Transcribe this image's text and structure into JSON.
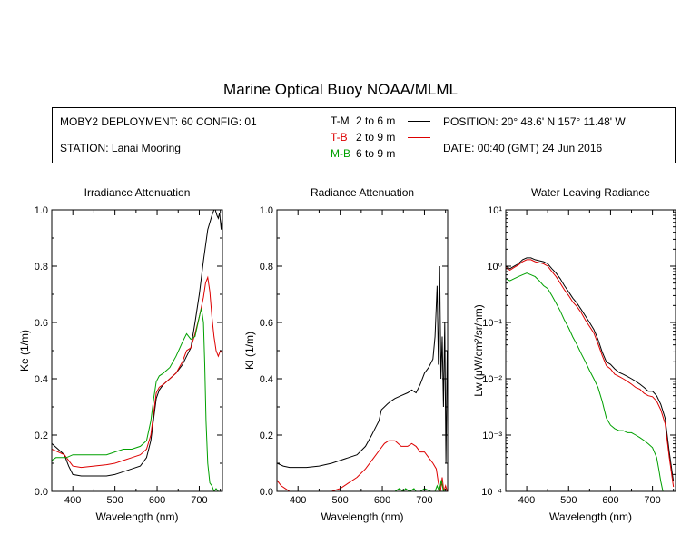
{
  "title": "Marine Optical Buoy NOAA/MLML",
  "info": {
    "deployment": "MOBY2 DEPLOYMENT: 60 CONFIG: 01",
    "station": "STATION: Lanai Mooring",
    "position": "POSITION: 20° 48.6' N  157° 11.48' W",
    "date": "DATE: 00:40 (GMT) 24 Jun 2016",
    "legend": [
      {
        "code": "T-M",
        "range": "2 to 6  m",
        "color": "#000000"
      },
      {
        "code": "T-B",
        "range": "2 to 9  m",
        "color": "#dd0000"
      },
      {
        "code": "M-B",
        "range": "6 to 9  m",
        "color": "#00a000"
      }
    ]
  },
  "chart_data": [
    {
      "type": "line",
      "title": "Irradiance Attenuation",
      "xlabel": "Wavelength (nm)",
      "ylabel": "Ke  (1/m)",
      "xlim": [
        350,
        755
      ],
      "ylim": [
        0,
        1
      ],
      "xticks": [
        400,
        500,
        600,
        700
      ],
      "yticks": [
        0.0,
        0.2,
        0.4,
        0.6,
        0.8,
        1.0
      ],
      "ytick_labels": [
        "0.0",
        "0.2",
        "0.4",
        "0.6",
        "0.8",
        "1.0"
      ],
      "series": [
        {
          "code": "T-M",
          "color": "#000000",
          "x": [
            350,
            365,
            380,
            390,
            400,
            420,
            450,
            480,
            500,
            520,
            540,
            560,
            575,
            585,
            592,
            598,
            605,
            615,
            630,
            645,
            660,
            670,
            680,
            690,
            700,
            710,
            720,
            730,
            735,
            738,
            742,
            745,
            748,
            752,
            755
          ],
          "y": [
            0.17,
            0.15,
            0.13,
            0.09,
            0.06,
            0.055,
            0.055,
            0.055,
            0.06,
            0.07,
            0.08,
            0.09,
            0.12,
            0.18,
            0.26,
            0.33,
            0.36,
            0.38,
            0.4,
            0.42,
            0.45,
            0.48,
            0.51,
            0.6,
            0.7,
            0.82,
            0.93,
            0.98,
            1.0,
            1.0,
            0.98,
            0.97,
            0.99,
            0.93,
            0.99
          ]
        },
        {
          "code": "T-B",
          "color": "#dd0000",
          "x": [
            350,
            365,
            380,
            390,
            400,
            420,
            450,
            480,
            500,
            520,
            540,
            560,
            575,
            585,
            592,
            598,
            605,
            615,
            630,
            645,
            660,
            670,
            680,
            690,
            700,
            710,
            715,
            720,
            725,
            730,
            735,
            740,
            745,
            750,
            755
          ],
          "y": [
            0.15,
            0.14,
            0.13,
            0.11,
            0.09,
            0.085,
            0.09,
            0.095,
            0.1,
            0.11,
            0.12,
            0.13,
            0.15,
            0.2,
            0.28,
            0.35,
            0.37,
            0.38,
            0.4,
            0.42,
            0.46,
            0.5,
            0.51,
            0.56,
            0.62,
            0.69,
            0.74,
            0.76,
            0.71,
            0.62,
            0.55,
            0.5,
            0.48,
            0.5,
            0.49
          ]
        },
        {
          "code": "M-B",
          "color": "#00a000",
          "x": [
            350,
            360,
            370,
            385,
            400,
            420,
            450,
            480,
            500,
            520,
            540,
            560,
            575,
            585,
            592,
            598,
            605,
            615,
            630,
            645,
            660,
            670,
            680,
            690,
            700,
            705,
            710,
            713,
            716,
            720,
            725,
            730,
            735,
            740,
            745,
            750
          ],
          "y": [
            0.11,
            0.12,
            0.12,
            0.12,
            0.13,
            0.13,
            0.13,
            0.13,
            0.14,
            0.15,
            0.15,
            0.16,
            0.18,
            0.25,
            0.33,
            0.39,
            0.41,
            0.42,
            0.44,
            0.48,
            0.53,
            0.56,
            0.54,
            0.55,
            0.62,
            0.65,
            0.6,
            0.45,
            0.25,
            0.1,
            0.03,
            0.02,
            0.0,
            0.01,
            0.0,
            0.0
          ]
        }
      ]
    },
    {
      "type": "line",
      "title": "Radiance Attenuation",
      "xlabel": "Wavelength (nm)",
      "ylabel": "Kl  (1/m)",
      "xlim": [
        350,
        755
      ],
      "ylim": [
        0,
        1
      ],
      "xticks": [
        400,
        500,
        600,
        700
      ],
      "yticks": [
        0.0,
        0.2,
        0.4,
        0.6,
        0.8,
        1.0
      ],
      "ytick_labels": [
        "0.0",
        "0.2",
        "0.4",
        "0.6",
        "0.8",
        "1.0"
      ],
      "series": [
        {
          "code": "T-M",
          "color": "#000000",
          "x": [
            350,
            365,
            380,
            400,
            420,
            450,
            480,
            500,
            520,
            540,
            560,
            575,
            585,
            592,
            598,
            605,
            612,
            620,
            630,
            645,
            660,
            670,
            680,
            690,
            700,
            710,
            720,
            725,
            730,
            733,
            736,
            739,
            742,
            745,
            748,
            751,
            754
          ],
          "y": [
            0.1,
            0.09,
            0.085,
            0.085,
            0.085,
            0.09,
            0.1,
            0.11,
            0.12,
            0.13,
            0.16,
            0.2,
            0.23,
            0.25,
            0.29,
            0.3,
            0.31,
            0.32,
            0.33,
            0.34,
            0.35,
            0.36,
            0.35,
            0.38,
            0.42,
            0.44,
            0.47,
            0.55,
            0.73,
            0.45,
            0.8,
            0.4,
            0.55,
            0.3,
            0.6,
            0.1,
            0.5
          ]
        },
        {
          "code": "T-B",
          "color": "#dd0000",
          "x": [
            350,
            360,
            370,
            380,
            390,
            400,
            420,
            450,
            480,
            500,
            520,
            540,
            560,
            580,
            595,
            605,
            615,
            630,
            645,
            660,
            670,
            680,
            690,
            700,
            710,
            720,
            728,
            733,
            738,
            742,
            746,
            750,
            754
          ],
          "y": [
            0.04,
            0.02,
            0.01,
            0.0,
            0.0,
            0.0,
            0.0,
            0.0,
            0.0,
            0.01,
            0.03,
            0.05,
            0.08,
            0.12,
            0.15,
            0.17,
            0.18,
            0.18,
            0.16,
            0.16,
            0.17,
            0.16,
            0.14,
            0.14,
            0.12,
            0.1,
            0.08,
            0.03,
            0.0,
            0.05,
            0.0,
            0.02,
            0.0
          ]
        },
        {
          "code": "M-B",
          "color": "#00a000",
          "x": [
            630,
            640,
            650,
            655,
            665,
            675,
            680,
            690,
            700,
            715,
            725,
            730,
            735,
            740,
            745,
            750
          ],
          "y": [
            0.0,
            0.01,
            0.0,
            0.01,
            0.0,
            0.01,
            0.0,
            0.0,
            0.01,
            0.0,
            0.0,
            0.02,
            0.0,
            0.04,
            0.0,
            0.01
          ]
        }
      ]
    },
    {
      "type": "line",
      "title": "Water Leaving Radiance",
      "xlabel": "Wavelength (nm)",
      "ylabel": "Lw  (μW/cm²/sr/nm)",
      "xlim": [
        350,
        755
      ],
      "ylim": [
        0.0001,
        10
      ],
      "yscale": "log",
      "xticks": [
        400,
        500,
        600,
        700
      ],
      "yticks": [
        0.0001,
        0.001,
        0.01,
        0.1,
        1,
        10
      ],
      "ytick_labels": [
        "10⁻⁴",
        "10⁻³",
        "10⁻²",
        "10⁻¹",
        "10⁰",
        "10¹"
      ],
      "series": [
        {
          "code": "T-M",
          "color": "#000000",
          "x": [
            350,
            360,
            370,
            380,
            390,
            400,
            410,
            420,
            430,
            440,
            450,
            460,
            470,
            480,
            490,
            500,
            510,
            520,
            530,
            540,
            550,
            560,
            570,
            580,
            590,
            600,
            610,
            620,
            630,
            640,
            650,
            660,
            670,
            680,
            690,
            700,
            710,
            720,
            730,
            740,
            750
          ],
          "y": [
            1.0,
            0.9,
            1.0,
            1.1,
            1.3,
            1.4,
            1.4,
            1.3,
            1.25,
            1.2,
            1.1,
            0.9,
            0.75,
            0.6,
            0.45,
            0.35,
            0.27,
            0.22,
            0.17,
            0.13,
            0.1,
            0.075,
            0.05,
            0.03,
            0.02,
            0.018,
            0.015,
            0.013,
            0.012,
            0.011,
            0.01,
            0.009,
            0.008,
            0.007,
            0.006,
            0.006,
            0.005,
            0.0035,
            0.002,
            0.0005,
            0.00015
          ]
        },
        {
          "code": "T-B",
          "color": "#dd0000",
          "x": [
            350,
            360,
            370,
            380,
            390,
            400,
            410,
            420,
            430,
            440,
            450,
            460,
            470,
            480,
            490,
            500,
            510,
            520,
            530,
            540,
            550,
            560,
            570,
            580,
            590,
            600,
            610,
            620,
            630,
            640,
            650,
            660,
            670,
            680,
            690,
            700,
            710,
            720,
            730,
            740,
            750
          ],
          "y": [
            0.95,
            0.85,
            0.95,
            1.05,
            1.2,
            1.3,
            1.3,
            1.2,
            1.15,
            1.1,
            1.0,
            0.8,
            0.65,
            0.5,
            0.38,
            0.3,
            0.23,
            0.19,
            0.15,
            0.11,
            0.085,
            0.065,
            0.042,
            0.026,
            0.017,
            0.015,
            0.012,
            0.011,
            0.01,
            0.009,
            0.008,
            0.007,
            0.0065,
            0.0055,
            0.005,
            0.0048,
            0.004,
            0.0028,
            0.0016,
            0.0004,
            0.00012
          ]
        },
        {
          "code": "M-B",
          "color": "#00a000",
          "x": [
            350,
            360,
            370,
            380,
            390,
            400,
            410,
            420,
            430,
            440,
            450,
            460,
            470,
            480,
            490,
            500,
            510,
            520,
            530,
            540,
            550,
            560,
            570,
            580,
            590,
            600,
            610,
            620,
            630,
            640,
            650,
            660,
            670,
            680,
            690,
            700,
            710,
            715,
            720,
            725
          ],
          "y": [
            0.6,
            0.55,
            0.6,
            0.65,
            0.7,
            0.75,
            0.7,
            0.65,
            0.55,
            0.45,
            0.4,
            0.3,
            0.22,
            0.16,
            0.11,
            0.08,
            0.055,
            0.04,
            0.028,
            0.02,
            0.014,
            0.01,
            0.007,
            0.004,
            0.002,
            0.0015,
            0.0013,
            0.0012,
            0.0012,
            0.0011,
            0.0011,
            0.001,
            0.0009,
            0.0008,
            0.0007,
            0.0006,
            0.0004,
            0.00025,
            0.00015,
            0.0001
          ]
        }
      ]
    }
  ]
}
